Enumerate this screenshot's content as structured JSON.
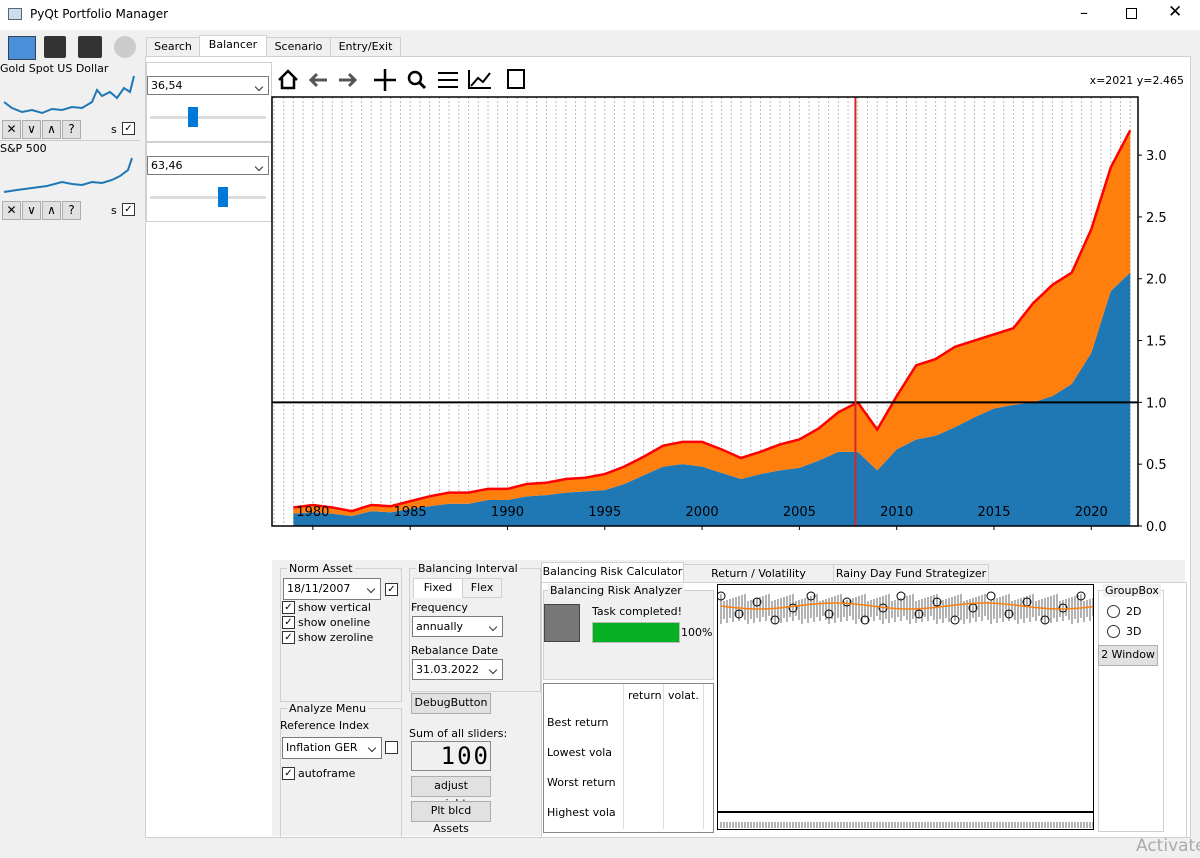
{
  "window": {
    "title": "PyQt Portfolio Manager"
  },
  "assets": [
    {
      "name": "Gold Spot US Dollar",
      "s_label": "s"
    },
    {
      "name": "S&P 500",
      "s_label": "s"
    }
  ],
  "tabs": [
    "Search",
    "Balancer",
    "Scenario",
    "Entry/Exit"
  ],
  "weights": [
    "36,54",
    "63,46"
  ],
  "plot": {
    "cursor": "x=2021 y=2.465",
    "xlim": [
      1977.9,
      2022.4
    ],
    "ylim": [
      0,
      3.47
    ],
    "xticks": [
      1980,
      1985,
      1990,
      1995,
      2000,
      2005,
      2010,
      2015,
      2020
    ],
    "yticks": [
      {
        "value": 0,
        "label": "0.0"
      },
      0.5,
      {
        "value": 1,
        "label": "1.0"
      },
      1.5,
      {
        "value": 2,
        "label": "2.0"
      },
      2.5,
      {
        "value": 3,
        "label": "3.0"
      }
    ],
    "years": [
      1979,
      1980,
      1981,
      1982,
      1983,
      1984,
      1985,
      1986,
      1987,
      1988,
      1989,
      1990,
      1991,
      1992,
      1993,
      1994,
      1995,
      1996,
      1997,
      1998,
      1999,
      2000,
      2001,
      2002,
      2003,
      2004,
      2005,
      2006,
      2007,
      2008,
      2009,
      2010,
      2011,
      2012,
      2013,
      2014,
      2015,
      2016,
      2017,
      2018,
      2019,
      2020,
      2021,
      2022
    ],
    "series": [
      {
        "color": "#1f77b4",
        "values": [
          0.1,
          0.11,
          0.1,
          0.08,
          0.12,
          0.11,
          0.14,
          0.16,
          0.18,
          0.18,
          0.21,
          0.21,
          0.24,
          0.25,
          0.27,
          0.28,
          0.29,
          0.34,
          0.41,
          0.48,
          0.5,
          0.48,
          0.43,
          0.38,
          0.42,
          0.45,
          0.47,
          0.53,
          0.6,
          0.6,
          0.45,
          0.62,
          0.7,
          0.73,
          0.8,
          0.88,
          0.95,
          0.98,
          1.0,
          1.05,
          1.15,
          1.4,
          1.9,
          2.05
        ]
      },
      {
        "color": "#ff7f0e",
        "values": [
          0.05,
          0.06,
          0.05,
          0.04,
          0.05,
          0.05,
          0.06,
          0.08,
          0.09,
          0.09,
          0.09,
          0.09,
          0.1,
          0.1,
          0.11,
          0.11,
          0.13,
          0.14,
          0.15,
          0.17,
          0.18,
          0.2,
          0.19,
          0.17,
          0.18,
          0.21,
          0.23,
          0.26,
          0.32,
          0.4,
          0.33,
          0.43,
          0.6,
          0.62,
          0.65,
          0.62,
          0.6,
          0.62,
          0.8,
          0.9,
          0.9,
          1.0,
          1.0,
          1.15
        ]
      }
    ],
    "total_line_color": "#ff0000",
    "norm_x": 2007.88,
    "norm_color": "#d62728",
    "reference": 1
  },
  "norm_asset": {
    "title": "Norm Asset",
    "date": "18/11/2007",
    "checks": [
      "show vertical",
      "show oneline",
      "show zeroline"
    ]
  },
  "analyze": {
    "title": "Analyze Menu",
    "label": "Reference Index",
    "index": "Inflation GER",
    "check": "autoframe"
  },
  "interval": {
    "title": "Balancing Interval",
    "tabs": [
      "Fixed",
      "Flex"
    ],
    "frequency_label": "Frequency",
    "frequency": "annually",
    "rebalance_label": "Rebalance Date",
    "rebalance_date": "31.03.2022"
  },
  "buttons": {
    "debug": "DebugButton",
    "sum_label": "Sum of all sliders:",
    "sum": "100",
    "adjust": "adjust weights",
    "plot": "Plt blcd Assets"
  },
  "risk": {
    "tabs": [
      "Balancing Risk Calculator",
      "Return / Volatility optimizer",
      "Rainy Day Fund Strategizer"
    ],
    "analyzer_title": "Balancing Risk Analyzer",
    "status": "Task completed!",
    "progress": 100,
    "progress_label": "100%",
    "table": {
      "columns": [
        "return",
        "volat."
      ],
      "rows": [
        "Best return",
        "Lowest vola",
        "Worst return",
        "Highest vola"
      ]
    }
  },
  "groupbox": {
    "title": "GroupBox",
    "options": [
      "2D",
      "3D"
    ],
    "button": "2 Window"
  },
  "watermark": "Activate"
}
